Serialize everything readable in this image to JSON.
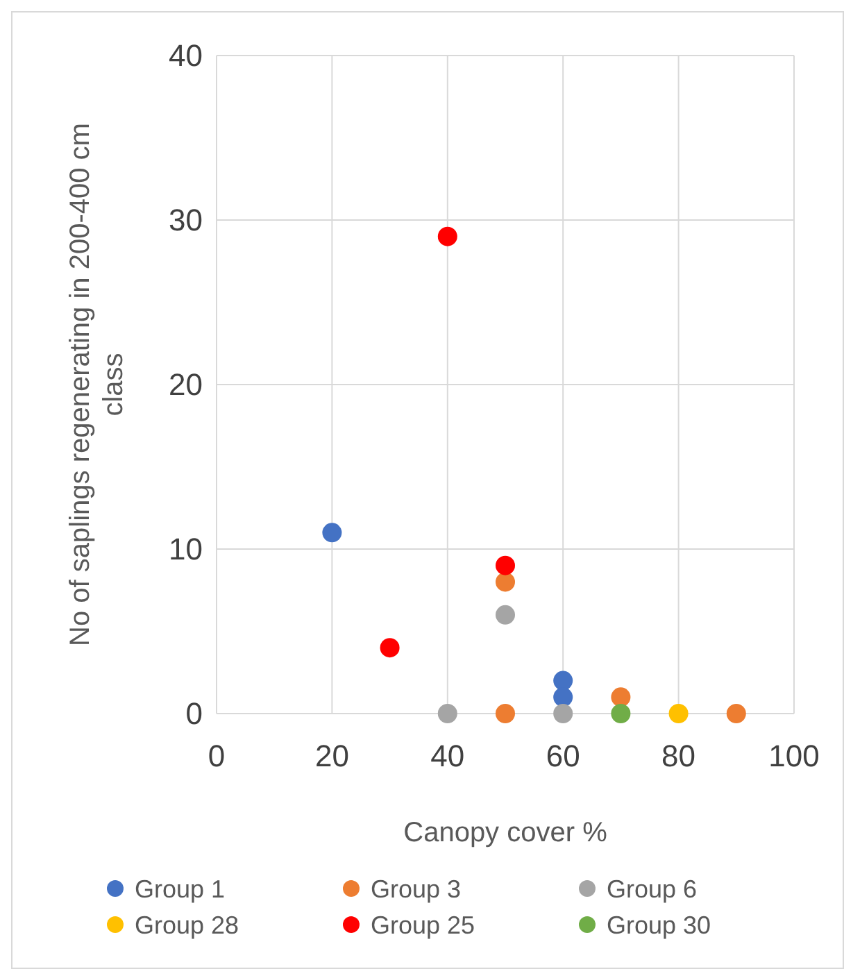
{
  "chart_data": {
    "type": "scatter",
    "xlabel": "Canopy cover %",
    "ylabel": "No of saplings regenerating in 200-400 cm class",
    "xlim": [
      0,
      100
    ],
    "xticks": [
      0,
      20,
      40,
      60,
      80,
      100
    ],
    "ylim": [
      0,
      40
    ],
    "yticks": [
      0,
      10,
      20,
      30,
      40
    ],
    "grid": true,
    "legend": "bottom",
    "marker": "circle",
    "series": [
      {
        "name": "Group 1",
        "color": "#4472c4",
        "x": [
          20,
          60,
          60
        ],
        "values": [
          11,
          2,
          1
        ]
      },
      {
        "name": "Group 3",
        "color": "#ed7d31",
        "x": [
          50,
          70,
          50,
          90
        ],
        "values": [
          8,
          1,
          0,
          0
        ]
      },
      {
        "name": "Group 6",
        "color": "#a5a5a5",
        "x": [
          40,
          50,
          60
        ],
        "values": [
          0,
          6,
          0
        ]
      },
      {
        "name": "Group 28",
        "color": "#ffc000",
        "x": [
          80
        ],
        "values": [
          0
        ]
      },
      {
        "name": "Group 25",
        "color": "#ff0000",
        "x": [
          40,
          30,
          50
        ],
        "values": [
          29,
          4,
          9
        ]
      },
      {
        "name": "Group 30",
        "color": "#70ad47",
        "x": [
          70
        ],
        "values": [
          0
        ]
      }
    ]
  }
}
